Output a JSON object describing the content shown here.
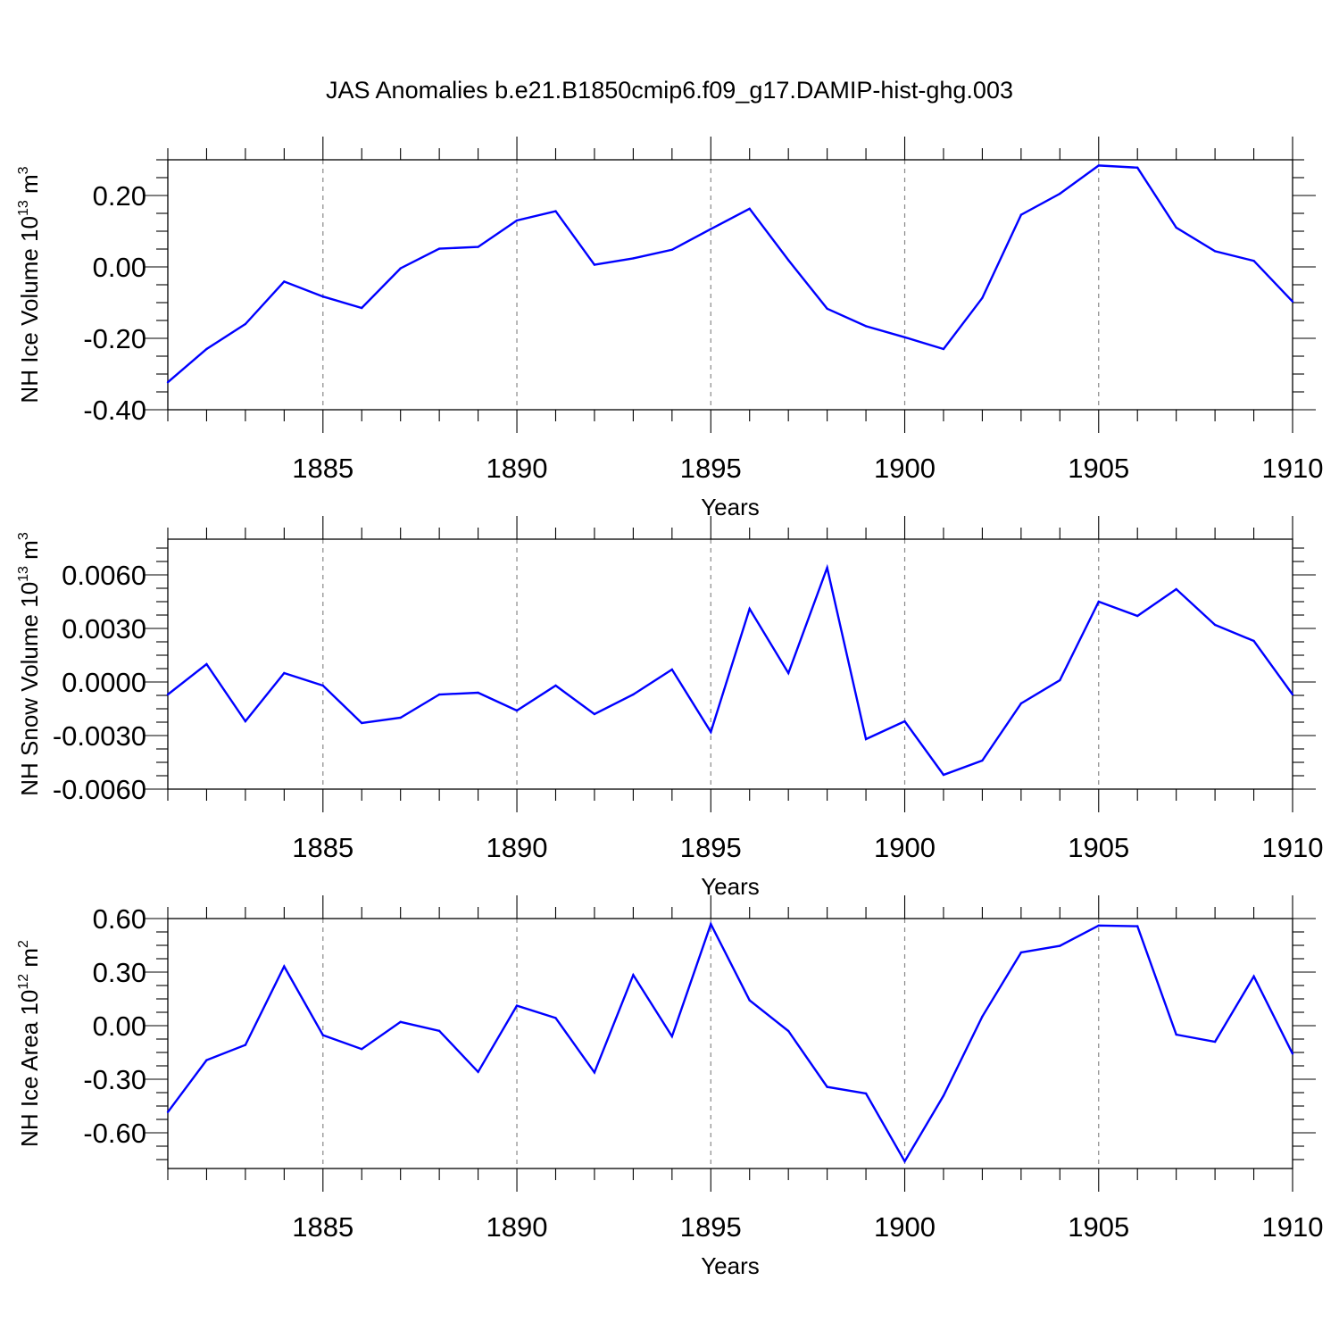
{
  "title": "JAS Anomalies b.e21.B1850cmip6.f09_g17.DAMIP-hist-ghg.003",
  "colors": {
    "line": "#0000ff",
    "axis": "#000000",
    "grid": "#888888"
  },
  "chart_data": [
    {
      "type": "line",
      "name": "ice-volume",
      "ylabel": "NH Ice Volume 10",
      "ylabel_exp": "13",
      "ylabel_unit": " m",
      "ylabel_unit_exp": "3",
      "xlabel": "Years",
      "xlim": [
        1881,
        1910
      ],
      "ylim": [
        -0.4,
        0.3
      ],
      "yticks": [
        -0.4,
        -0.2,
        0.0,
        0.2
      ],
      "ytick_labels": [
        "-0.40",
        "-0.20",
        "0.00",
        "0.20"
      ],
      "xticks": [
        1885,
        1890,
        1895,
        1900,
        1905,
        1910
      ],
      "xtick_labels": [
        "1885",
        "1890",
        "1895",
        "1900",
        "1905",
        "1910"
      ],
      "x": [
        1881,
        1882,
        1883,
        1884,
        1885,
        1886,
        1887,
        1888,
        1889,
        1890,
        1891,
        1892,
        1893,
        1894,
        1895,
        1896,
        1897,
        1898,
        1899,
        1900,
        1901,
        1902,
        1903,
        1904,
        1905,
        1906,
        1907,
        1908,
        1909,
        1910
      ],
      "values": [
        -0.323,
        -0.23,
        -0.16,
        -0.041,
        -0.083,
        -0.115,
        -0.004,
        0.051,
        0.056,
        0.13,
        0.156,
        0.006,
        0.024,
        0.048,
        0.106,
        0.163,
        0.019,
        -0.117,
        -0.166,
        -0.197,
        -0.23,
        -0.087,
        0.146,
        0.205,
        0.284,
        0.278,
        0.11,
        0.044,
        0.017,
        -0.097
      ]
    },
    {
      "type": "line",
      "name": "snow-volume",
      "ylabel": "NH Snow Volume 10",
      "ylabel_exp": "13",
      "ylabel_unit": " m",
      "ylabel_unit_exp": "3",
      "xlabel": "Years",
      "xlim": [
        1881,
        1910
      ],
      "ylim": [
        -0.006,
        0.008
      ],
      "yticks": [
        -0.006,
        -0.003,
        0.0,
        0.003,
        0.006
      ],
      "ytick_labels": [
        "-0.0060",
        "-0.0030",
        "0.0000",
        "0.0030",
        "0.0060"
      ],
      "xticks": [
        1885,
        1890,
        1895,
        1900,
        1905,
        1910
      ],
      "xtick_labels": [
        "1885",
        "1890",
        "1895",
        "1900",
        "1905",
        "1910"
      ],
      "x": [
        1881,
        1882,
        1883,
        1884,
        1885,
        1886,
        1887,
        1888,
        1889,
        1890,
        1891,
        1892,
        1893,
        1894,
        1895,
        1896,
        1897,
        1898,
        1899,
        1900,
        1901,
        1902,
        1903,
        1904,
        1905,
        1906,
        1907,
        1908,
        1909,
        1910
      ],
      "values": [
        -0.0007,
        0.001,
        -0.0022,
        0.0005,
        -0.0002,
        -0.0023,
        -0.002,
        -0.0007,
        -0.0006,
        -0.0016,
        -0.0002,
        -0.0018,
        -0.0007,
        0.0007,
        -0.0028,
        0.0041,
        0.0005,
        0.0064,
        -0.0032,
        -0.0022,
        -0.0052,
        -0.0044,
        -0.0012,
        0.0001,
        0.0045,
        0.0037,
        0.0052,
        0.0032,
        0.0023,
        -0.0007
      ]
    },
    {
      "type": "line",
      "name": "ice-area",
      "ylabel": "NH Ice Area 10",
      "ylabel_exp": "12",
      "ylabel_unit": " m",
      "ylabel_unit_exp": "2",
      "xlabel": "Years",
      "xlim": [
        1881,
        1910
      ],
      "ylim": [
        -0.8,
        0.6
      ],
      "yticks": [
        -0.6,
        -0.3,
        0.0,
        0.3,
        0.6
      ],
      "ytick_labels": [
        "-0.60",
        "-0.30",
        "0.00",
        "0.30",
        "0.60"
      ],
      "xticks": [
        1885,
        1890,
        1895,
        1900,
        1905,
        1910
      ],
      "xtick_labels": [
        "1885",
        "1890",
        "1895",
        "1900",
        "1905",
        "1910"
      ],
      "x": [
        1881,
        1882,
        1883,
        1884,
        1885,
        1886,
        1887,
        1888,
        1889,
        1890,
        1891,
        1892,
        1893,
        1894,
        1895,
        1896,
        1897,
        1898,
        1899,
        1900,
        1901,
        1902,
        1903,
        1904,
        1905,
        1906,
        1907,
        1908,
        1909,
        1910
      ],
      "values": [
        -0.484,
        -0.193,
        -0.108,
        0.332,
        -0.053,
        -0.131,
        0.021,
        -0.029,
        -0.259,
        0.112,
        0.043,
        -0.262,
        0.284,
        -0.06,
        0.569,
        0.142,
        -0.03,
        -0.343,
        -0.38,
        -0.76,
        -0.392,
        0.051,
        0.41,
        0.447,
        0.561,
        0.557,
        -0.05,
        -0.09,
        0.276,
        -0.157
      ]
    }
  ]
}
